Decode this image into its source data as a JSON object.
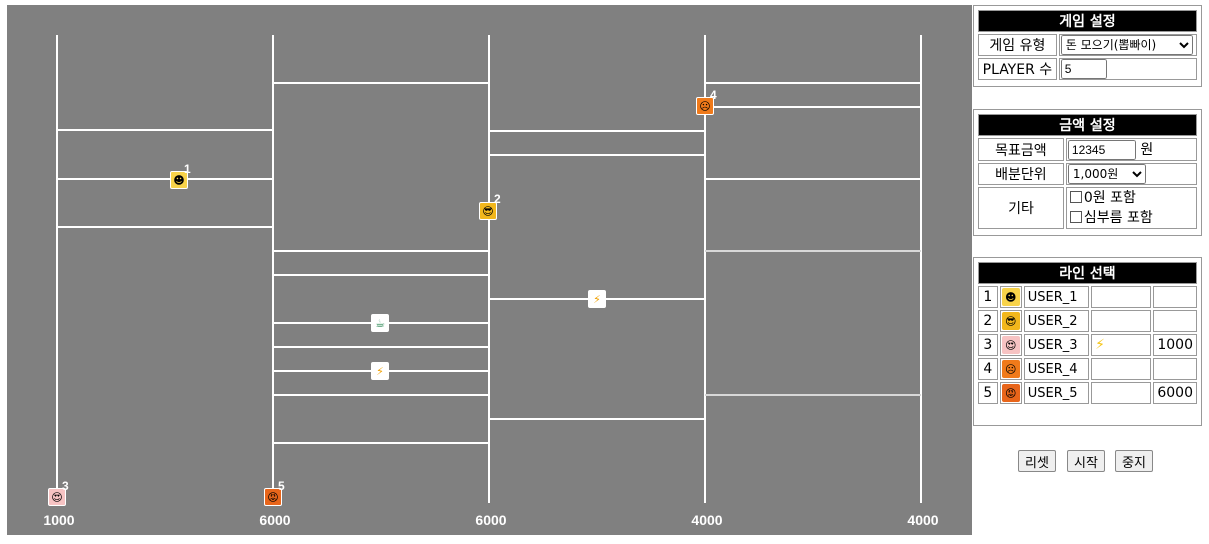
{
  "board": {
    "bottom_amounts": [
      "1000",
      "6000",
      "6000",
      "4000",
      "4000"
    ],
    "markers": [
      {
        "num": "1",
        "face": "☻"
      },
      {
        "num": "2",
        "face": "😎"
      },
      {
        "num": "3",
        "face": "😍"
      },
      {
        "num": "4",
        "face": "☹"
      },
      {
        "num": "5",
        "face": "😡"
      }
    ],
    "items": [
      "⚡",
      "☕",
      "⚡"
    ]
  },
  "game_settings": {
    "title": "게임 설정",
    "type_label": "게임 유형",
    "type_value": "돈 모으기(뽑빠이)",
    "players_label": "PLAYER 수",
    "players_value": "5"
  },
  "amount_settings": {
    "title": "금액 설정",
    "target_label": "목표금액",
    "target_value": "12345",
    "target_unit": "원",
    "unit_label": "배분단위",
    "unit_value": "1,000원",
    "etc_label": "기타",
    "opt_zero": "0원 포함",
    "opt_errand": "심부름 포함"
  },
  "line_select": {
    "title": "라인 선택",
    "rows": [
      {
        "num": "1",
        "user": "USER_1",
        "extra": "",
        "amount": ""
      },
      {
        "num": "2",
        "user": "USER_2",
        "extra": "",
        "amount": ""
      },
      {
        "num": "3",
        "user": "USER_3",
        "extra": "⚡",
        "amount": "1000"
      },
      {
        "num": "4",
        "user": "USER_4",
        "extra": "",
        "amount": ""
      },
      {
        "num": "5",
        "user": "USER_5",
        "extra": "",
        "amount": "6000"
      }
    ]
  },
  "buttons": {
    "reset": "리셋",
    "start": "시작",
    "stop": "중지"
  }
}
